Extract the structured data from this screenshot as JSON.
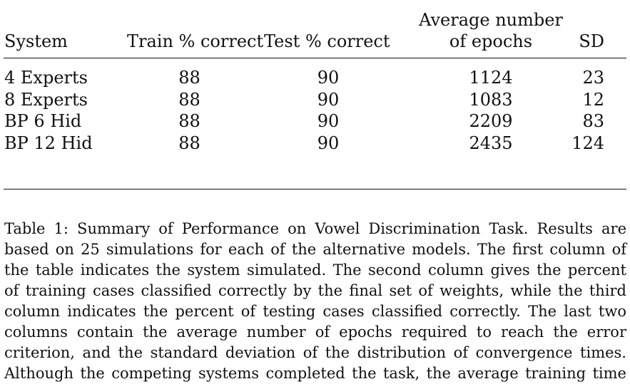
{
  "table": {
    "headers": {
      "system": "System",
      "train": "Train % correct",
      "test": "Test % correct",
      "avg_line1": "Average number",
      "avg_line2": "of epochs",
      "sd": "SD"
    },
    "rows": [
      {
        "system": "4 Experts",
        "train": "88",
        "test": "90",
        "avg": "1124",
        "sd": "23"
      },
      {
        "system": "8 Experts",
        "train": "88",
        "test": "90",
        "avg": "1083",
        "sd": "12"
      },
      {
        "system": "BP 6 Hid",
        "train": "88",
        "test": "90",
        "avg": "2209",
        "sd": "83"
      },
      {
        "system": "BP 12 Hid",
        "train": "88",
        "test": "90",
        "avg": "2435",
        "sd": "124"
      }
    ]
  },
  "caption": {
    "lines": [
      "Table 1: Summary of Performance on Vowel Discrimination Task. Results are",
      "based on 25 simulations for each of the alternative models. The first column of",
      "the table indicates the system simulated. The second column gives the percent",
      "of training cases classified correctly by the final set of weights, while the third",
      "column indicates the percent of testing cases classified correctly. The last two",
      "columns contain the average number of epochs required to reach the error",
      "criterion, and the standard deviation of the distribution of convergence times.",
      "Although the competing systems completed the task, the average training time"
    ]
  }
}
